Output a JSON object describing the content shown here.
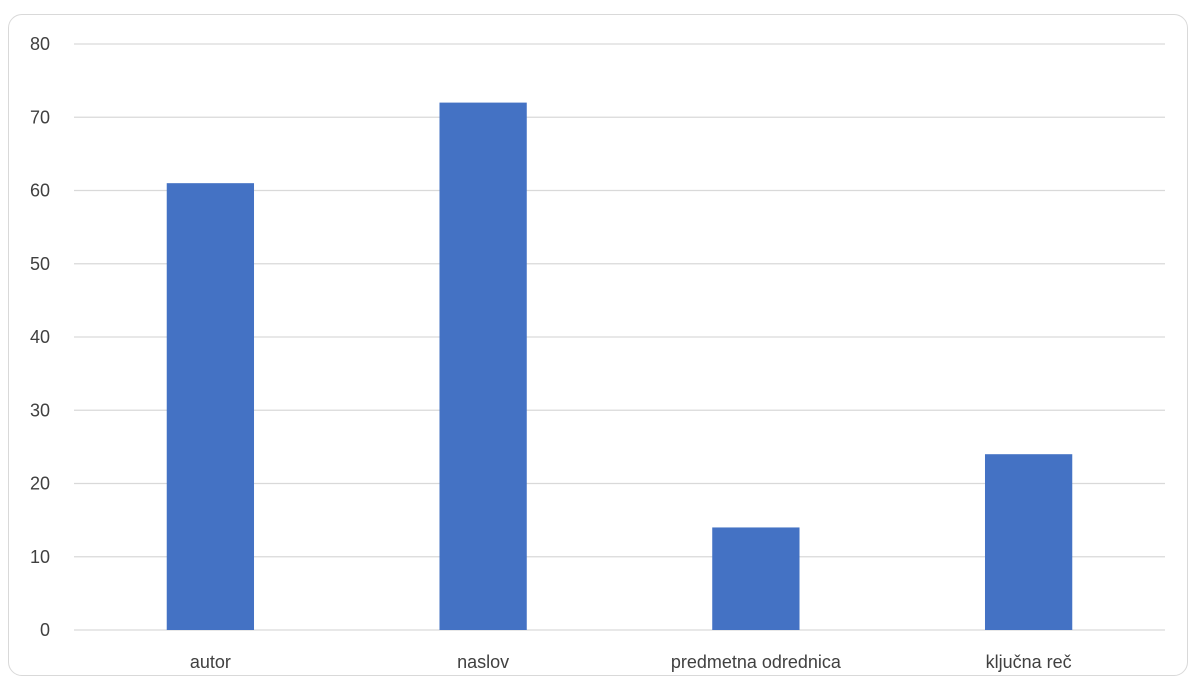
{
  "chart_data": {
    "type": "bar",
    "title": "",
    "xlabel": "",
    "ylabel": "",
    "categories": [
      "autor",
      "naslov",
      "predmetna odrednica",
      "ključna reč"
    ],
    "values": [
      61,
      72,
      14,
      24
    ],
    "ylim": [
      0,
      80
    ],
    "yticks": [
      0,
      10,
      20,
      30,
      40,
      50,
      60,
      70,
      80
    ],
    "grid": true,
    "legend": "none",
    "bar_color": "#4472c4",
    "grid_color": "#d9d9d9"
  }
}
